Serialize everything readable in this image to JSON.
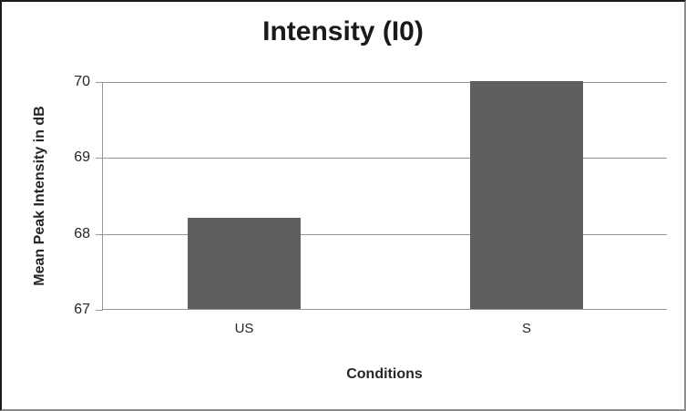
{
  "chart_data": {
    "type": "bar",
    "title": "Intensity (I0)",
    "categories": [
      "US",
      "S"
    ],
    "values": [
      68.2,
      70
    ],
    "xlabel": "Conditions",
    "ylabel": "Mean Peak Intensity in dB",
    "ylim": [
      67,
      70
    ],
    "yticks": [
      67,
      68,
      69,
      70
    ],
    "grid": "horizontal",
    "legend": "none",
    "colors": {
      "bar": "#5f5f5f",
      "gridline": "#969696",
      "axis": "#969696",
      "title_text": "#1a1a1a",
      "label_text": "#262626",
      "tick_text": "#262626",
      "background": "#ffffff"
    }
  }
}
